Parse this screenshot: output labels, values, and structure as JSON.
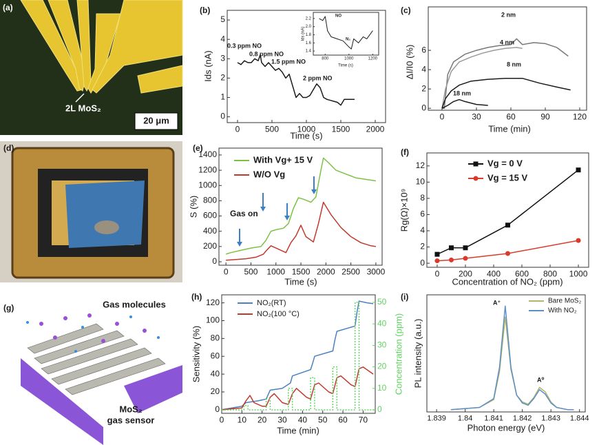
{
  "figures": [
    {
      "label": "(a)",
      "texts": [
        "2L MoS₂",
        "20 μm"
      ]
    },
    {
      "label": "(d)"
    },
    {
      "label": "(g)",
      "texts": [
        "Gas molecules",
        "MoS₂",
        "gas sensor"
      ]
    }
  ],
  "chart_data": [
    {
      "type": "line",
      "label": "(b)",
      "xlabel": "Time (s)",
      "ylabel": "Ids (nA)",
      "xlim": [
        -150,
        2150
      ],
      "ylim": [
        -0.3,
        5.5
      ],
      "xticks": [
        0,
        500,
        1000,
        1500,
        2000
      ],
      "yticks": [
        0,
        1,
        2,
        3,
        4,
        5
      ],
      "annotations": [
        "0.3 ppm NO",
        "0.8 ppm NO",
        "1.5 ppm NO",
        "2 ppm NO"
      ],
      "x": [
        0,
        50,
        100,
        150,
        200,
        250,
        300,
        330,
        350,
        400,
        450,
        500,
        550,
        600,
        650,
        700,
        750,
        800,
        850,
        900,
        950,
        1000,
        1050,
        1100,
        1150,
        1200,
        1250,
        1300,
        1350,
        1400,
        1450,
        1500,
        1550,
        1600,
        1700
      ],
      "series": [
        {
          "color": "#1a1a1a",
          "values": [
            2.8,
            2.7,
            2.9,
            2.8,
            2.8,
            3.0,
            2.9,
            3.2,
            2.8,
            2.6,
            2.8,
            2.6,
            2.4,
            2.5,
            2.3,
            2.0,
            2.2,
            1.6,
            1.0,
            1.2,
            1.0,
            1.0,
            1.1,
            1.4,
            1.7,
            1.5,
            1.0,
            0.9,
            0.85,
            0.8,
            0.75,
            0.6,
            0.9,
            0.9,
            0.9
          ]
        }
      ]
    },
    {
      "type": "line",
      "inset": true,
      "xlabel": "Time (s)",
      "ylabel": "Ids (nA)",
      "xlim": [
        700,
        1250
      ],
      "ylim": [
        1.3,
        2.35
      ],
      "xticks": [
        800,
        1000,
        1200
      ],
      "yticks": [
        1.4,
        1.6,
        1.8,
        {
          "value": 2,
          "label": "2.0"
        },
        2.2
      ],
      "annotations": [
        "NO",
        "N₂"
      ],
      "x": [
        750,
        780,
        800,
        820,
        850,
        900,
        950,
        1000,
        1020,
        1040,
        1080,
        1120,
        1150,
        1200
      ],
      "series": [
        {
          "color": "#1a1a1a",
          "values": [
            2.2,
            2.15,
            2.25,
            1.9,
            1.75,
            1.7,
            1.65,
            1.5,
            1.45,
            1.7,
            1.6,
            1.75,
            1.7,
            1.9
          ]
        }
      ]
    },
    {
      "type": "line",
      "label": "(c)",
      "xlabel": "Time (min)",
      "ylabel": "ΔI/I0 (%)",
      "xlim": [
        -12,
        126
      ],
      "ylim": [
        -0.2,
        10.5
      ],
      "xticks": [
        0,
        30,
        60,
        90,
        120
      ],
      "yticks": [
        0,
        2,
        4,
        6
      ],
      "series": [
        {
          "name": "2 nm",
          "color": "#777777",
          "x": [
            0,
            2,
            5,
            10,
            20,
            30,
            40,
            50,
            60,
            65,
            70,
            80,
            90,
            100,
            110
          ],
          "values": [
            0,
            0,
            3.5,
            4.8,
            5.6,
            6.0,
            6.3,
            6.5,
            6.6,
            7.2,
            6.6,
            6.8,
            6.7,
            6.3,
            5.4
          ]
        },
        {
          "name": "4 nm",
          "color": "#9a9a9a",
          "x": [
            0,
            3,
            8,
            15,
            25,
            35,
            45,
            55,
            65,
            70
          ],
          "values": [
            0,
            2,
            3.8,
            4.8,
            5.3,
            5.7,
            6.0,
            6.2,
            6.3,
            6.2
          ]
        },
        {
          "name": "8 nm",
          "color": "#1a1a1a",
          "x": [
            0,
            3,
            8,
            15,
            25,
            40,
            55,
            70,
            85,
            100,
            112
          ],
          "values": [
            0,
            1,
            1.8,
            2.4,
            2.8,
            3.0,
            3.1,
            3.1,
            2.6,
            2.2,
            1.9
          ]
        },
        {
          "name": "18 nm",
          "color": "#1a1a1a",
          "x": [
            0,
            5,
            10,
            15,
            20,
            30,
            40
          ],
          "values": [
            0,
            0.3,
            0.7,
            0.9,
            0.7,
            0.4,
            0.3
          ]
        }
      ]
    },
    {
      "type": "line",
      "label": "(e)",
      "xlabel": "Time (s)",
      "ylabel": "S (%)",
      "xlim": [
        -140,
        3125
      ],
      "ylim": [
        -45,
        1490
      ],
      "xticks": [
        0,
        500,
        1000,
        1500,
        2000,
        2500,
        3000
      ],
      "yticks": [
        0,
        200,
        400,
        600,
        800,
        1000,
        1200,
        1400
      ],
      "annotations": [
        "Gas on"
      ],
      "series": [
        {
          "name": "With Vg+ 15 V",
          "color": "#7cc242",
          "x": [
            0,
            100,
            300,
            500,
            700,
            800,
            900,
            1000,
            1150,
            1250,
            1350,
            1450,
            1550,
            1700,
            1800,
            1900,
            1950,
            2050,
            2200,
            2400,
            2600,
            2800,
            3000
          ],
          "values": [
            100,
            120,
            150,
            180,
            200,
            280,
            400,
            420,
            440,
            500,
            700,
            840,
            820,
            780,
            850,
            1200,
            1360,
            1300,
            1200,
            1150,
            1100,
            1080,
            1060
          ]
        },
        {
          "name": "W/O Vg",
          "color": "#c0392b",
          "x": [
            0,
            200,
            400,
            600,
            750,
            800,
            900,
            1000,
            1200,
            1300,
            1400,
            1500,
            1600,
            1750,
            1850,
            1950,
            2100,
            2300,
            2500,
            2700,
            2900,
            3000
          ],
          "values": [
            20,
            30,
            40,
            60,
            100,
            140,
            210,
            180,
            120,
            250,
            340,
            480,
            330,
            260,
            500,
            780,
            620,
            450,
            330,
            250,
            210,
            200
          ]
        }
      ]
    },
    {
      "type": "line",
      "label": "(f)",
      "xlabel": "Concentration of NO₂ (ppm)",
      "ylabel": "Rg(Ω)×10⁹",
      "markers": true,
      "xlim": [
        -73,
        1073
      ],
      "ylim": [
        -0.5,
        13.6
      ],
      "xticks": [
        0,
        200,
        400,
        600,
        800,
        1000
      ],
      "yticks": [
        0,
        2,
        4,
        6,
        8,
        10,
        12
      ],
      "x": [
        0,
        100,
        200,
        500,
        1000
      ],
      "series": [
        {
          "name": "Vg = 0 V",
          "color": "#111111",
          "marker": "square",
          "values": [
            1.1,
            1.9,
            1.9,
            4.7,
            11.5
          ]
        },
        {
          "name": "Vg = 15 V",
          "color": "#d93a2b",
          "marker": "circle",
          "values": [
            0.3,
            0.4,
            0.6,
            1.2,
            2.8
          ]
        }
      ]
    },
    {
      "type": "line",
      "label": "(h)",
      "xlabel": "Time (min)",
      "ylabel": "Sensitivity (%)",
      "y2label": "Concentration (ppm)",
      "y2color": "#5fd35f",
      "xlim": [
        0,
        76
      ],
      "ylim": [
        -4,
        129
      ],
      "y2lim": [
        -1.6,
        53.5
      ],
      "xticks": [
        0,
        10,
        20,
        30,
        40,
        50,
        60,
        70
      ],
      "yticks": [
        0,
        20,
        40,
        60,
        80,
        100,
        120
      ],
      "y2ticks": [
        0,
        10,
        20,
        30,
        40,
        50
      ],
      "series": [
        {
          "name": "NO₂(RT)",
          "color": "#4a7fc1",
          "x": [
            0,
            5,
            10,
            12,
            18,
            22,
            24,
            30,
            34,
            35,
            44,
            45,
            46,
            55,
            56,
            57,
            66,
            67,
            68,
            72,
            75
          ],
          "values": [
            0,
            2,
            4,
            8,
            10,
            12,
            22,
            24,
            30,
            38,
            45,
            52,
            60,
            66,
            78,
            88,
            94,
            110,
            122,
            120,
            119
          ]
        },
        {
          "name": "NO₂(100 °C)",
          "color": "#c0392b",
          "x": [
            0,
            10,
            12,
            14,
            16,
            20,
            22,
            24,
            26,
            30,
            33,
            35,
            37,
            42,
            44,
            46,
            48,
            53,
            55,
            57,
            59,
            64,
            66,
            68,
            70,
            75
          ],
          "values": [
            0,
            2,
            10,
            16,
            8,
            4,
            4,
            14,
            18,
            8,
            6,
            18,
            24,
            14,
            12,
            28,
            30,
            20,
            18,
            36,
            38,
            28,
            26,
            46,
            48,
            40
          ]
        },
        {
          "color": "#5fd35f",
          "axis": "y2",
          "dash": true,
          "x": [
            0,
            11,
            11,
            13,
            13,
            22,
            22,
            24,
            24,
            33,
            33,
            35,
            35,
            44,
            44,
            46,
            46,
            55,
            55,
            57,
            57,
            66,
            66,
            68,
            68,
            76
          ],
          "values": [
            0,
            0,
            2,
            2,
            0,
            0,
            5,
            5,
            0,
            0,
            10,
            10,
            0,
            0,
            15,
            15,
            0,
            0,
            20,
            20,
            0,
            0,
            50,
            50,
            0,
            0
          ]
        }
      ]
    },
    {
      "type": "line",
      "label": "(i)",
      "xlabel": "Photon energy (eV)",
      "ylabel": "PL intensity (a.u.)",
      "xlim": [
        1.83866,
        1.8442
      ],
      "ylim": [
        0,
        1.05
      ],
      "xticks": [
        1.839,
        1.84,
        1.841,
        1.842,
        1.843,
        1.844
      ],
      "annotations": [
        "A⁺",
        "A⁰"
      ],
      "x": [
        1.8395,
        1.84,
        1.8405,
        1.841,
        1.8412,
        1.8414,
        1.8416,
        1.8418,
        1.842,
        1.8422,
        1.8424,
        1.8426,
        1.8428,
        1.843,
        1.8432,
        1.8436,
        1.8438
      ],
      "series": [
        {
          "name": "Bare MoS₂",
          "color": "#b5b56a",
          "values": [
            0.02,
            0.03,
            0.04,
            0.11,
            0.36,
            0.85,
            0.38,
            0.15,
            0.09,
            0.07,
            0.13,
            0.22,
            0.18,
            0.09,
            0.04,
            0.02,
            0.02
          ]
        },
        {
          "name": "With NO₂",
          "color": "#5b8fc9",
          "values": [
            0.02,
            0.03,
            0.04,
            0.12,
            0.4,
            0.95,
            0.4,
            0.15,
            0.08,
            0.06,
            0.12,
            0.2,
            0.16,
            0.08,
            0.04,
            0.02,
            0.02
          ]
        }
      ]
    }
  ]
}
